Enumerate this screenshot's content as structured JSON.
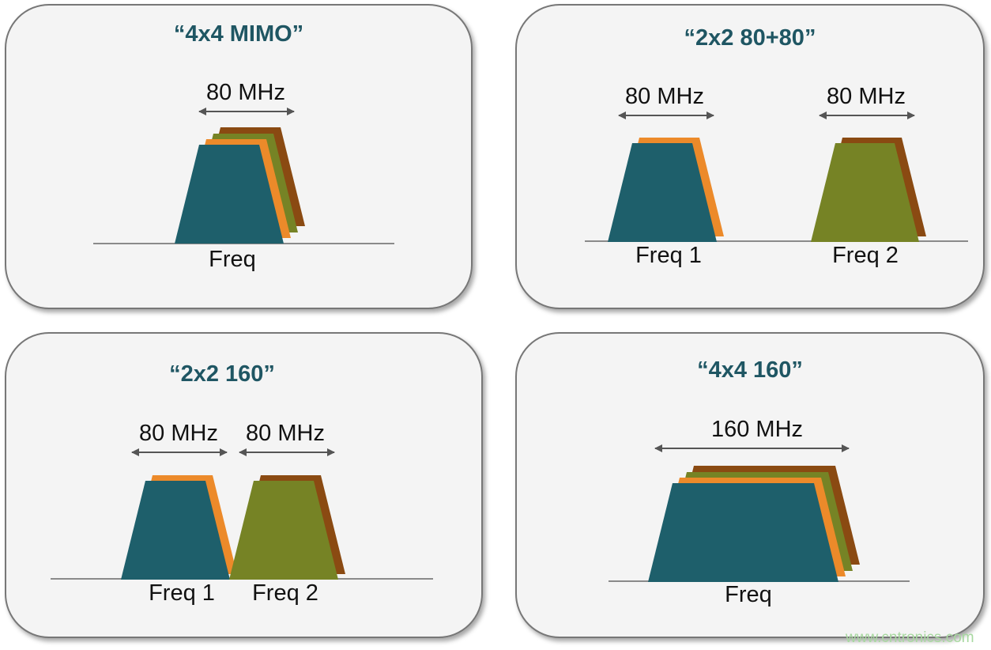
{
  "colors": {
    "teal": "#1e5f6b",
    "orange": "#ec8a2a",
    "green": "#768325",
    "brown": "#8a4a12",
    "panel": "#f4f4f4",
    "border": "#777777",
    "title": "#1f5663"
  },
  "panels": [
    {
      "title": "“4x4 MIMO”",
      "bandwidth_labels": [
        "80 MHz"
      ],
      "freq_labels": [
        "Freq"
      ],
      "streams": [
        "teal",
        "orange",
        "green",
        "brown"
      ]
    },
    {
      "title": "“2x2 80+80”",
      "bandwidth_labels": [
        "80 MHz",
        "80 MHz"
      ],
      "freq_labels": [
        "Freq 1",
        "Freq 2"
      ],
      "streams": [
        "teal",
        "orange",
        "green",
        "brown"
      ]
    },
    {
      "title": "“2x2 160”",
      "bandwidth_labels": [
        "80 MHz",
        "80 MHz"
      ],
      "freq_labels": [
        "Freq 1",
        "Freq 2"
      ],
      "streams": [
        "teal",
        "orange",
        "green",
        "brown"
      ]
    },
    {
      "title": "“4x4 160”",
      "bandwidth_labels": [
        "160 MHz"
      ],
      "freq_labels": [
        "Freq"
      ],
      "streams": [
        "teal",
        "orange",
        "green",
        "brown"
      ]
    }
  ],
  "watermark": "www.cntronics.com"
}
